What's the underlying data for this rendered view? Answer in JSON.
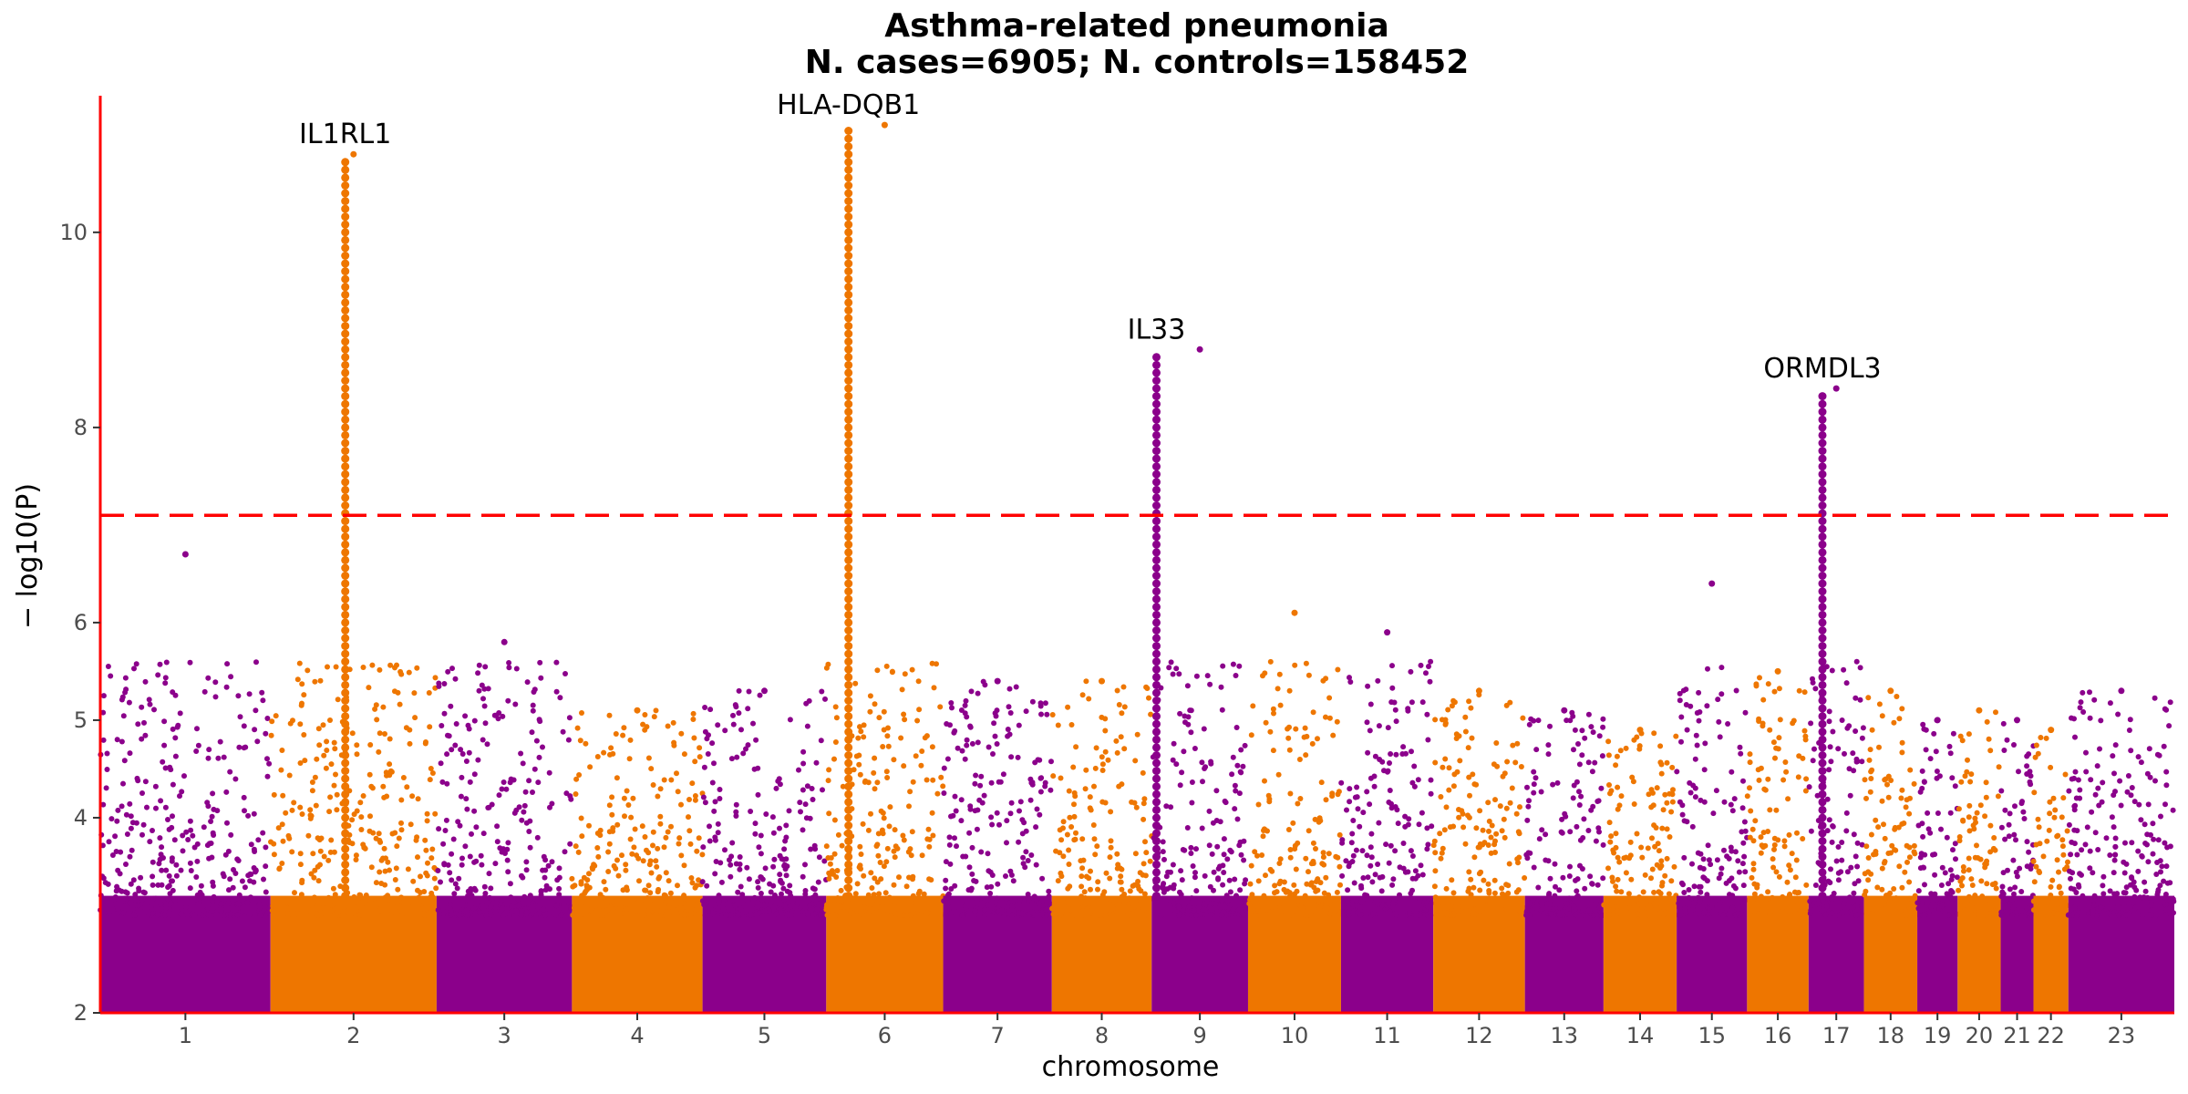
{
  "chart_data": {
    "type": "scatter",
    "subtype": "manhattan",
    "title": "Asthma-related pneumonia",
    "subtitle": "N. cases=6905; N. controls=158452",
    "xlabel": "chromosome",
    "ylabel": "− log10(P)",
    "ylim": [
      2,
      11.4
    ],
    "y_ticks": [
      2,
      4,
      5,
      6,
      8,
      10
    ],
    "y_tick_labels": [
      "2",
      "4",
      "5",
      "6",
      "8",
      "10"
    ],
    "significance_threshold": 7.1,
    "grid": false,
    "colors": {
      "odd": "#8B008B",
      "even": "#EE7600",
      "threshold": "#FF0000",
      "axis": "#FF0000"
    },
    "chromosomes": [
      {
        "label": "1",
        "start": 0,
        "length": 249,
        "top": 6.7
      },
      {
        "label": "2",
        "start": 249,
        "length": 243,
        "top": 10.8
      },
      {
        "label": "3",
        "start": 492,
        "length": 198,
        "top": 5.8
      },
      {
        "label": "4",
        "start": 690,
        "length": 191,
        "top": 5.1
      },
      {
        "label": "5",
        "start": 881,
        "length": 181,
        "top": 5.3
      },
      {
        "label": "6",
        "start": 1062,
        "length": 171,
        "top": 11.1
      },
      {
        "label": "7",
        "start": 1233,
        "length": 159,
        "top": 5.4
      },
      {
        "label": "8",
        "start": 1392,
        "length": 146,
        "top": 5.4
      },
      {
        "label": "9",
        "start": 1538,
        "length": 141,
        "top": 8.8
      },
      {
        "label": "10",
        "start": 1679,
        "length": 136,
        "top": 6.1
      },
      {
        "label": "11",
        "start": 1815,
        "length": 135,
        "top": 5.9
      },
      {
        "label": "12",
        "start": 1950,
        "length": 134,
        "top": 5.3
      },
      {
        "label": "13",
        "start": 2084,
        "length": 115,
        "top": 5.1
      },
      {
        "label": "14",
        "start": 2199,
        "length": 107,
        "top": 4.9
      },
      {
        "label": "15",
        "start": 2306,
        "length": 103,
        "top": 6.4
      },
      {
        "label": "16",
        "start": 2409,
        "length": 90,
        "top": 5.5
      },
      {
        "label": "17",
        "start": 2499,
        "length": 81,
        "top": 8.4
      },
      {
        "label": "18",
        "start": 2580,
        "length": 78,
        "top": 5.3
      },
      {
        "label": "19",
        "start": 2658,
        "length": 59,
        "top": 5.0
      },
      {
        "label": "20",
        "start": 2717,
        "length": 63,
        "top": 5.1
      },
      {
        "label": "21",
        "start": 2780,
        "length": 48,
        "top": 5.0
      },
      {
        "label": "22",
        "start": 2828,
        "length": 51,
        "top": 4.9
      },
      {
        "label": "23",
        "start": 2879,
        "length": 155,
        "top": 5.3
      }
    ],
    "x_total": 3034,
    "peaks": [
      {
        "chr": "2",
        "pos": 0.45,
        "y": 10.8,
        "gene": "IL1RL1"
      },
      {
        "chr": "6",
        "pos": 0.19,
        "y": 11.1,
        "gene": "HLA-DQB1"
      },
      {
        "chr": "9",
        "pos": 0.05,
        "y": 8.8,
        "gene": "IL33"
      },
      {
        "chr": "17",
        "pos": 0.25,
        "y": 8.4,
        "gene": "ORMDL3"
      }
    ]
  }
}
